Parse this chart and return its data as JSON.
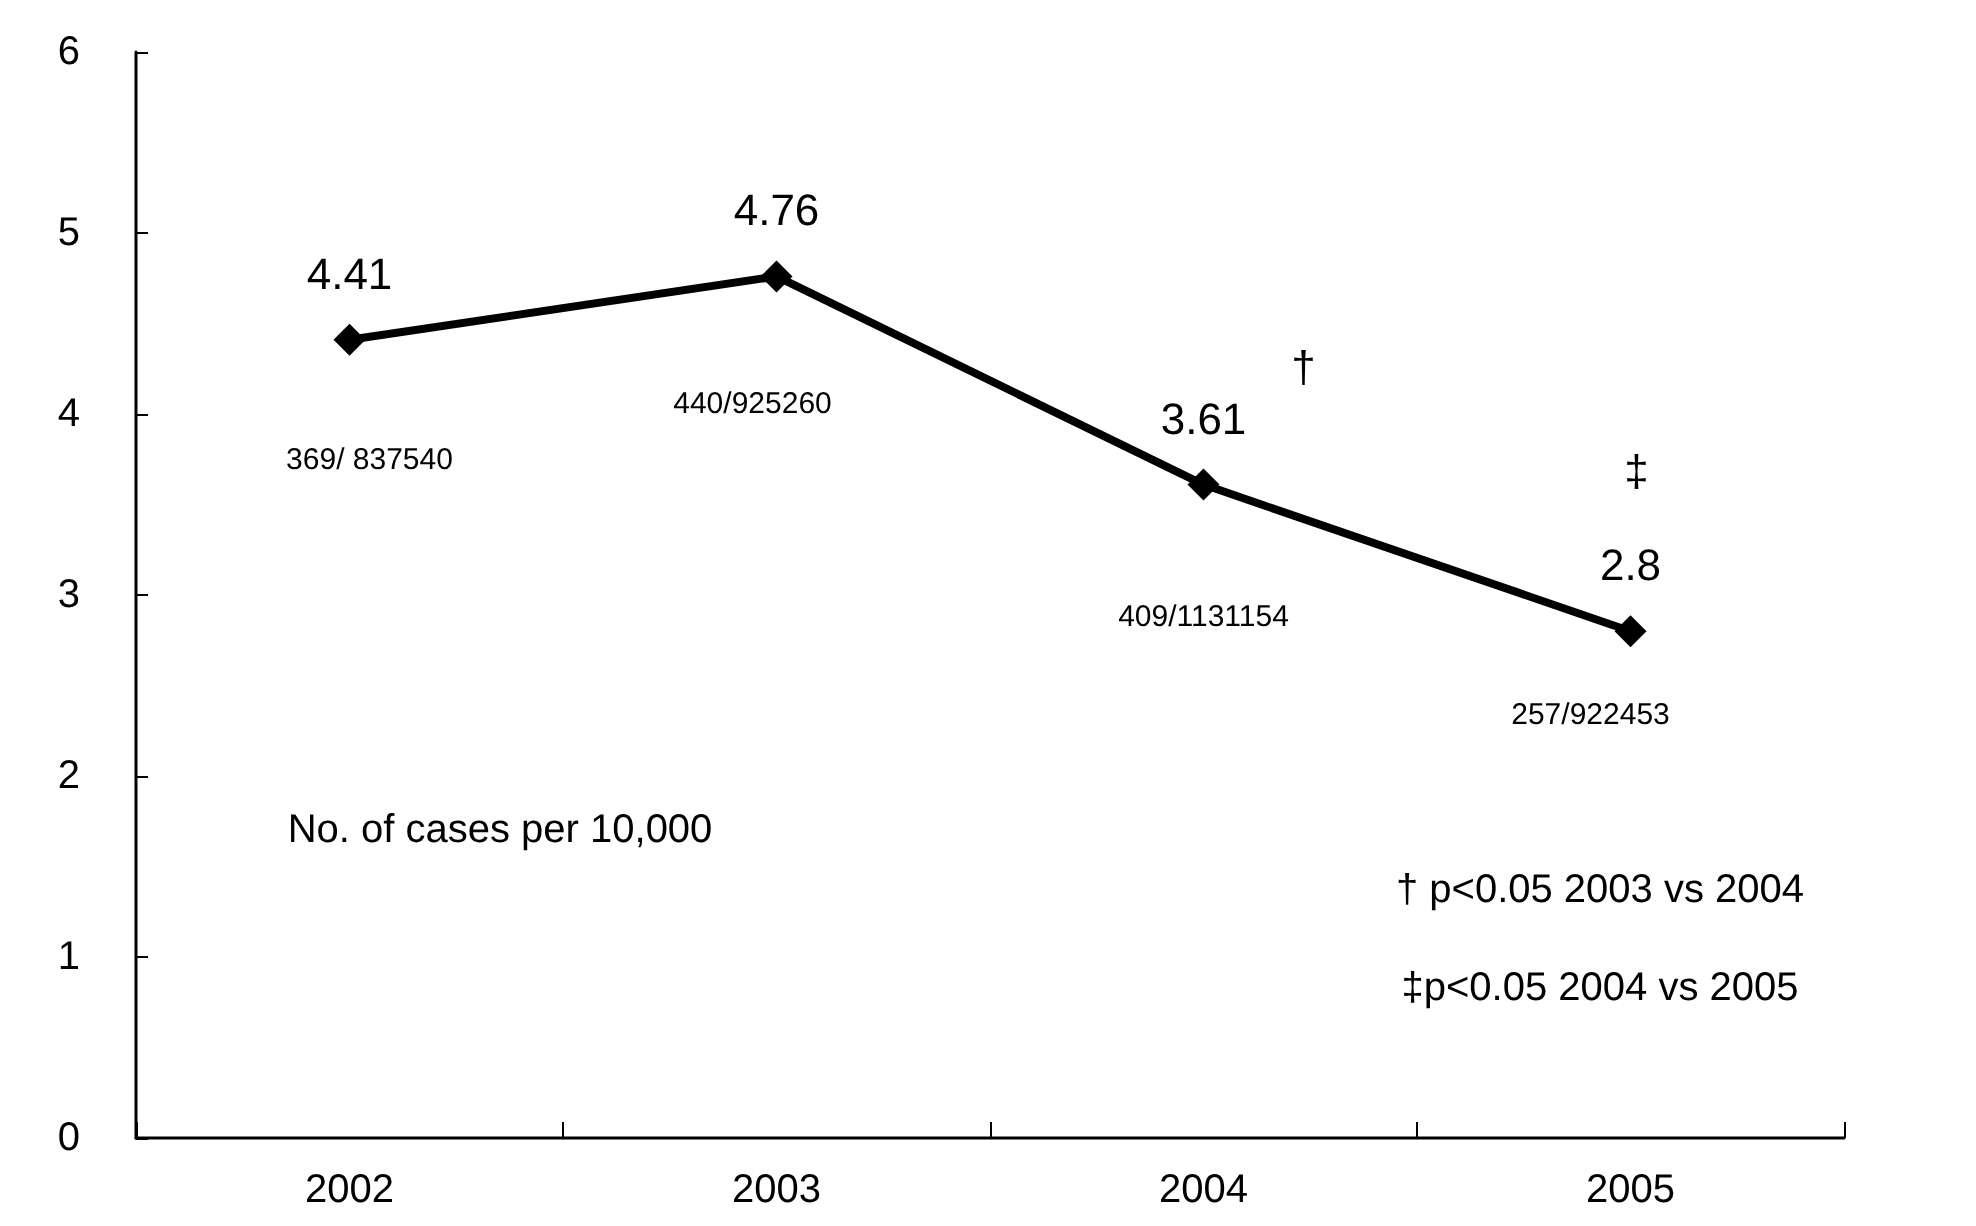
{
  "chart_data": {
    "type": "line",
    "categories": [
      "2002",
      "2003",
      "2004",
      "2005"
    ],
    "series": [
      {
        "color": "#000000",
        "values": [
          4.41,
          4.76,
          3.61,
          2.8
        ]
      }
    ],
    "data_labels": true,
    "marker": "diamond",
    "line_style": "solid",
    "grid": false,
    "ylim": [
      0,
      6
    ],
    "yticks": [
      0,
      1,
      2,
      3,
      4,
      5,
      6
    ],
    "annotations": [
      "369/ 837540",
      "440/925260",
      "409/1131154",
      "257/922453",
      "†",
      "‡",
      "No. of cases per 10,000",
      "† p<0.05 2003 vs 2004",
      "‡p<0.05 2004 vs 2005"
    ]
  }
}
